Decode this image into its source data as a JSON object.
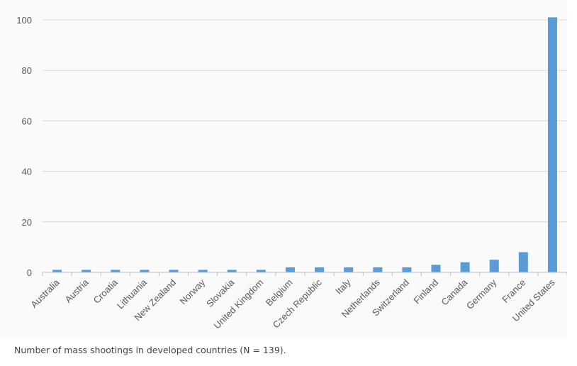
{
  "caption": "Number of mass shootings in developed countries (N = 139).",
  "colors": {
    "bar": "#5b9bd5",
    "grid": "#d9d9d9",
    "axis": "#bfbfbf",
    "tick_text": "#595959",
    "panel_background": "#fafafa"
  },
  "chart_data": {
    "type": "bar",
    "title": "",
    "xlabel": "",
    "ylabel": "",
    "ylim": [
      0,
      100
    ],
    "yticks": [
      0,
      20,
      40,
      60,
      80,
      100
    ],
    "grid": "horizontal",
    "categories": [
      "Australia",
      "Austria",
      "Croatia",
      "Lithuania",
      "New Zealand",
      "Norway",
      "Slovakia",
      "United Kingdom",
      "Belgium",
      "Czech Republic",
      "Italy",
      "Netherlands",
      "Switzerland",
      "Finland",
      "Canada",
      "Germany",
      "France",
      "United States"
    ],
    "values": [
      1,
      1,
      1,
      1,
      1,
      1,
      1,
      1,
      2,
      2,
      2,
      2,
      2,
      3,
      4,
      5,
      8,
      101
    ]
  }
}
